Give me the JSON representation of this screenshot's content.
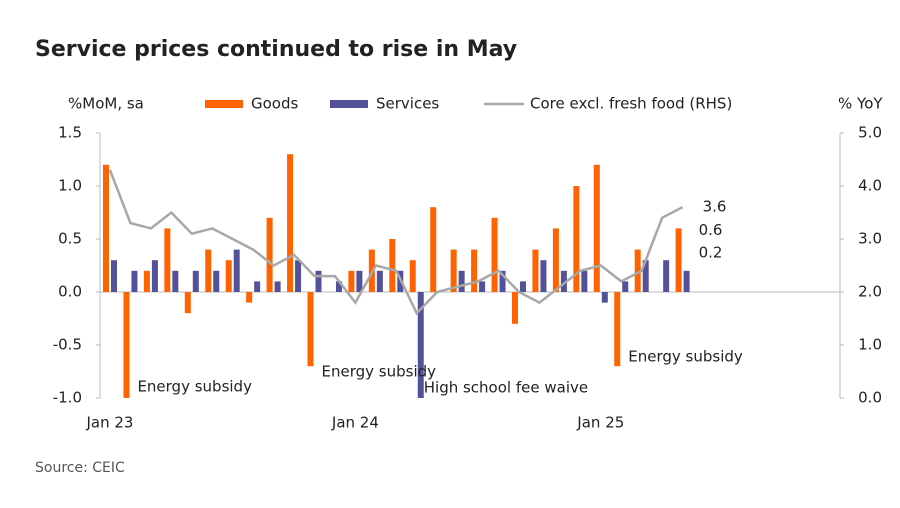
{
  "chart_data": {
    "type": "bar-line",
    "title": "Service prices continued to rise in May",
    "y_label": "%MoM, sa",
    "y2_label": "% YoY",
    "source": "Source: CEIC",
    "categories": [
      "Jan 23",
      null,
      null,
      null,
      null,
      null,
      null,
      null,
      null,
      null,
      null,
      null,
      "Jan 24",
      null,
      null,
      null,
      null,
      null,
      null,
      null,
      null,
      null,
      null,
      null,
      "Jan 25",
      null,
      null,
      null,
      null
    ],
    "series": [
      {
        "name": "Goods",
        "color": "#ff6200",
        "kind": "bar",
        "values": [
          1.2,
          -1.0,
          0.2,
          0.6,
          -0.2,
          0.4,
          0.3,
          -0.1,
          0.7,
          1.3,
          -0.7,
          0.0,
          0.2,
          0.4,
          0.5,
          0.3,
          0.8,
          0.4,
          0.4,
          0.7,
          -0.3,
          0.4,
          0.6,
          1.0,
          1.2,
          -0.7,
          0.4,
          0.0,
          0.6
        ]
      },
      {
        "name": "Services",
        "color": "#525199",
        "kind": "bar",
        "values": [
          0.3,
          0.2,
          0.3,
          0.2,
          0.2,
          0.2,
          0.4,
          0.1,
          0.1,
          0.3,
          0.2,
          0.1,
          0.2,
          0.2,
          0.2,
          -1.0,
          0.0,
          0.2,
          0.1,
          0.2,
          0.1,
          0.3,
          0.2,
          0.2,
          -0.1,
          0.1,
          0.3,
          0.3,
          0.2
        ]
      },
      {
        "name": "Core excl. fresh food (RHS)",
        "color": "#a8a8a8",
        "kind": "line",
        "axis": "y2",
        "values": [
          4.3,
          3.3,
          3.2,
          3.5,
          3.1,
          3.2,
          3.0,
          2.8,
          2.5,
          2.7,
          2.3,
          2.3,
          1.8,
          2.5,
          2.4,
          1.6,
          2.0,
          2.1,
          2.2,
          2.4,
          2.0,
          1.8,
          2.1,
          2.4,
          2.5,
          2.2,
          2.4,
          3.4,
          3.6
        ]
      }
    ],
    "ylim": [
      -1.0,
      1.5
    ],
    "yticks": [
      {
        "value": -1.0,
        "label": "-1.0"
      },
      -0.5,
      {
        "value": 0,
        "label": "0.0"
      },
      0.5,
      {
        "value": 1.0,
        "label": "1.0"
      },
      1.5
    ],
    "y2lim": [
      0,
      5
    ],
    "y2ticks": [
      {
        "value": 0,
        "label": "0.0"
      },
      {
        "value": 1,
        "label": "1.0"
      },
      {
        "value": 2,
        "label": "2.0"
      },
      {
        "value": 3,
        "label": "3.0"
      },
      {
        "value": 4,
        "label": "4.0"
      },
      {
        "value": 5,
        "label": "5.0"
      }
    ],
    "annotations": [
      {
        "text": "Energy subsidy",
        "index": 1
      },
      {
        "text": "Energy subsidy",
        "index": 10
      },
      {
        "text": "High school fee waive",
        "index": 15
      },
      {
        "text": "Energy subsidy",
        "index": 25
      }
    ]
  }
}
